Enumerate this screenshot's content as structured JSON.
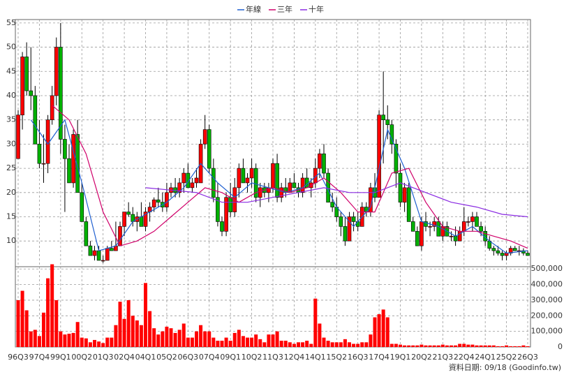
{
  "chart_data": {
    "type": "candlestick",
    "legend": "top",
    "grid": true,
    "note": "資料日期: 09/18 (Goodinfo.tw)",
    "up_color": "#ff0000",
    "down_color": "#00b000",
    "categories": [
      "96Q3",
      null,
      null,
      null,
      null,
      "97Q4",
      null,
      null,
      null,
      null,
      "99Q1",
      null,
      null,
      null,
      null,
      "00Q2",
      null,
      null,
      null,
      null,
      "01Q3",
      null,
      null,
      null,
      null,
      "02Q4",
      null,
      null,
      null,
      null,
      "04Q1",
      null,
      null,
      null,
      null,
      "05Q2",
      null,
      null,
      null,
      null,
      "06Q3",
      null,
      null,
      null,
      null,
      "07Q4",
      null,
      null,
      null,
      null,
      "09Q1",
      null,
      null,
      null,
      null,
      "10Q2",
      null,
      null,
      null,
      null,
      "11Q3",
      null,
      null,
      null,
      null,
      "12Q4",
      null,
      null,
      null,
      null,
      "14Q1",
      null,
      null,
      null,
      null,
      "15Q2",
      null,
      null,
      null,
      null,
      "16Q3",
      null,
      null,
      null,
      null,
      "17Q4",
      null,
      null,
      null,
      null,
      "19Q1",
      null,
      null,
      null,
      null,
      "20Q2",
      null,
      null,
      null,
      null,
      "21Q3",
      null,
      null,
      null,
      null,
      "22Q4",
      null,
      null,
      null,
      null,
      "24Q1",
      null,
      null,
      null,
      null,
      "25Q2",
      null,
      null,
      null,
      null,
      "26Q3"
    ],
    "ohlc": [
      [
        27,
        37,
        27,
        36
      ],
      [
        36,
        49,
        33,
        48
      ],
      [
        48,
        51,
        40,
        41
      ],
      [
        41,
        50,
        37,
        40
      ],
      [
        40,
        42,
        30,
        30
      ],
      [
        30,
        35,
        25,
        26
      ],
      [
        26,
        32,
        22,
        26
      ],
      [
        26,
        36,
        24,
        35
      ],
      [
        35,
        42,
        34,
        40
      ],
      [
        40,
        52,
        38,
        50
      ],
      [
        50,
        55,
        28,
        31
      ],
      [
        31,
        34,
        16,
        27
      ],
      [
        27,
        30,
        22,
        22
      ],
      [
        22,
        33,
        21,
        32
      ],
      [
        32,
        35,
        20,
        20
      ],
      [
        20,
        22,
        14,
        14
      ],
      [
        14,
        15,
        9,
        9
      ],
      [
        9,
        10,
        7,
        7
      ],
      [
        7,
        9,
        6,
        8
      ],
      [
        8,
        9,
        6,
        6
      ],
      [
        6,
        7,
        5.5,
        6
      ],
      [
        6,
        9,
        6,
        8.5
      ],
      [
        8.5,
        10,
        8,
        8
      ],
      [
        8,
        14,
        8,
        9
      ],
      [
        9,
        14,
        9,
        13
      ],
      [
        13,
        16,
        11,
        16
      ],
      [
        16,
        18,
        15,
        15.5
      ],
      [
        15.5,
        17,
        13,
        14
      ],
      [
        14,
        16,
        12,
        15
      ],
      [
        15,
        18,
        13,
        13
      ],
      [
        13,
        17,
        12,
        16
      ],
      [
        16,
        18,
        14,
        17
      ],
      [
        17,
        19,
        16,
        18.5
      ],
      [
        18.5,
        21,
        17,
        18
      ],
      [
        18,
        20,
        16,
        17
      ],
      [
        17,
        22,
        16,
        20
      ],
      [
        20,
        22,
        19,
        21
      ],
      [
        21,
        23,
        19,
        20
      ],
      [
        20,
        23,
        19,
        22
      ],
      [
        22,
        25,
        20,
        24
      ],
      [
        24,
        26,
        21,
        21
      ],
      [
        21,
        23,
        20,
        22
      ],
      [
        22,
        25,
        21,
        23
      ],
      [
        22,
        31,
        22,
        30
      ],
      [
        30,
        36,
        29,
        33
      ],
      [
        33,
        34,
        24,
        25
      ],
      [
        25,
        27,
        18,
        19
      ],
      [
        19,
        22,
        13,
        14
      ],
      [
        14,
        15,
        11,
        12
      ],
      [
        12,
        20,
        11,
        19
      ],
      [
        19,
        22,
        15,
        16
      ],
      [
        16,
        23,
        15,
        21
      ],
      [
        21,
        26,
        19,
        25
      ],
      [
        25,
        27,
        22,
        22
      ],
      [
        22,
        24,
        20,
        23
      ],
      [
        23,
        27,
        21,
        25
      ],
      [
        25,
        26,
        18,
        19
      ],
      [
        19,
        22,
        17,
        21
      ],
      [
        21,
        22,
        19,
        20
      ],
      [
        20,
        22,
        18,
        21
      ],
      [
        21,
        27,
        20,
        26
      ],
      [
        26,
        28,
        18,
        19
      ],
      [
        19,
        22,
        18,
        21
      ],
      [
        21,
        23,
        19,
        20
      ],
      [
        20,
        23,
        20,
        22
      ],
      [
        22,
        24,
        21,
        21
      ],
      [
        21,
        22,
        19,
        20
      ],
      [
        20,
        24,
        19,
        23
      ],
      [
        23,
        25,
        21,
        21
      ],
      [
        21,
        23,
        19,
        22
      ],
      [
        22,
        27,
        21,
        25
      ],
      [
        25,
        29,
        23,
        28
      ],
      [
        28,
        30,
        23,
        24
      ],
      [
        24,
        25,
        18,
        18
      ],
      [
        18,
        20,
        16,
        17
      ],
      [
        17,
        19,
        14,
        15
      ],
      [
        15,
        16,
        11,
        13
      ],
      [
        13,
        15,
        9,
        10
      ],
      [
        10,
        16,
        10,
        15
      ],
      [
        15,
        16,
        12,
        14
      ],
      [
        14,
        16,
        12,
        13
      ],
      [
        13,
        18,
        13,
        17
      ],
      [
        17,
        18,
        15,
        16
      ],
      [
        16,
        22,
        15,
        21
      ],
      [
        21,
        24,
        18,
        19
      ],
      [
        19,
        37,
        19,
        36
      ],
      [
        36,
        45,
        26,
        35
      ],
      [
        35,
        38,
        31,
        34
      ],
      [
        34,
        35,
        28,
        30
      ],
      [
        30,
        31,
        21,
        24
      ],
      [
        24,
        26,
        17,
        18
      ],
      [
        18,
        22,
        16,
        21
      ],
      [
        21,
        22,
        14,
        14
      ],
      [
        14,
        15,
        12,
        12
      ],
      [
        12,
        13,
        9,
        9
      ],
      [
        9,
        15,
        8,
        14
      ],
      [
        14,
        16,
        12,
        13
      ],
      [
        13,
        14,
        11,
        13
      ],
      [
        13,
        15,
        12,
        14
      ],
      [
        14,
        15,
        11,
        11
      ],
      [
        11,
        14,
        10,
        13
      ],
      [
        13,
        14,
        11,
        11
      ],
      [
        11,
        12,
        10,
        11
      ],
      [
        11,
        13,
        9,
        10
      ],
      [
        10,
        13,
        10,
        12
      ],
      [
        12,
        17,
        11,
        14
      ],
      [
        14,
        15,
        13,
        14
      ],
      [
        14,
        16,
        12,
        15
      ],
      [
        15,
        16,
        13,
        13
      ],
      [
        13,
        14,
        11,
        12
      ],
      [
        12,
        13,
        9,
        10
      ],
      [
        10,
        11,
        8,
        8.5
      ],
      [
        8.5,
        9,
        7,
        8
      ],
      [
        8,
        9,
        7,
        7.5
      ],
      [
        7.5,
        8,
        6,
        7
      ],
      [
        7,
        8,
        6,
        7.5
      ],
      [
        7.5,
        9,
        7,
        8.5
      ],
      [
        8.5,
        9,
        8,
        8
      ],
      [
        8,
        9,
        7,
        8
      ],
      [
        8,
        8.5,
        7,
        7.5
      ],
      [
        7.5,
        8,
        7,
        7
      ]
    ],
    "ylim": [
      4.7,
      55.7
    ],
    "yticks": [
      10,
      15,
      20,
      25,
      30,
      35,
      40,
      45,
      50,
      55
    ],
    "volume": {
      "color": "#ff0000",
      "values": [
        300000,
        360000,
        235000,
        100000,
        110000,
        70000,
        220000,
        440000,
        530000,
        300000,
        100000,
        80000,
        85000,
        90000,
        160000,
        60000,
        55000,
        30000,
        45000,
        35000,
        25000,
        60000,
        60000,
        140000,
        290000,
        180000,
        300000,
        200000,
        170000,
        140000,
        410000,
        230000,
        120000,
        80000,
        100000,
        130000,
        120000,
        90000,
        110000,
        150000,
        60000,
        60000,
        100000,
        140000,
        100000,
        100000,
        60000,
        40000,
        40000,
        60000,
        40000,
        90000,
        110000,
        70000,
        60000,
        60000,
        80000,
        50000,
        30000,
        80000,
        80000,
        100000,
        40000,
        40000,
        30000,
        20000,
        30000,
        30000,
        40000,
        20000,
        310000,
        150000,
        60000,
        40000,
        30000,
        30000,
        30000,
        50000,
        30000,
        20000,
        20000,
        30000,
        30000,
        80000,
        190000,
        210000,
        240000,
        190000,
        20000,
        20000,
        15000,
        10000,
        10000,
        10000,
        10000,
        15000,
        10000,
        10000,
        10000,
        10000,
        15000,
        10000,
        10000,
        10000,
        20000,
        20000,
        15000,
        15000,
        10000,
        10000,
        10000,
        10000,
        10000,
        5000,
        5000,
        10000,
        5000,
        5000,
        5000,
        10000,
        5000
      ],
      "ylim": [
        0,
        510000
      ],
      "yticks": [
        0,
        {
          "value": 100000,
          "label": "100,000"
        },
        {
          "value": 200000,
          "label": "200,000"
        },
        {
          "value": 300000,
          "label": "300,000"
        },
        {
          "value": 400000,
          "label": "400,000"
        },
        {
          "value": 500000,
          "label": "500,000"
        }
      ]
    },
    "series": [
      {
        "name": "年線",
        "color": "#1f5fd0",
        "x": [
          3,
          7,
          11,
          15,
          19,
          23,
          27,
          31,
          35,
          39,
          43,
          47,
          51,
          55,
          59,
          63,
          67,
          71,
          75,
          79,
          83,
          87,
          91,
          95,
          99,
          103,
          107,
          111,
          115,
          120
        ],
        "values": [
          35,
          30,
          35,
          22,
          8,
          9,
          14,
          16,
          18,
          21,
          26,
          22,
          19,
          22,
          21,
          20,
          21,
          24,
          17,
          13,
          17,
          33,
          25,
          14,
          13,
          11,
          13,
          10,
          7.5,
          8
        ]
      },
      {
        "name": "三年",
        "color": "#d0006a",
        "x": [
          8,
          12,
          16,
          20,
          24,
          28,
          32,
          36,
          40,
          44,
          48,
          52,
          56,
          60,
          64,
          68,
          72,
          76,
          80,
          84,
          88,
          92,
          96,
          100,
          104,
          108,
          112,
          116,
          120
        ],
        "values": [
          38,
          35,
          28,
          16,
          9,
          10,
          12,
          15,
          18,
          21,
          20,
          18,
          20,
          21,
          20,
          21,
          23,
          20,
          16,
          16,
          24,
          25,
          18,
          13,
          12,
          12,
          11,
          10,
          8.5
        ]
      },
      {
        "name": "十年",
        "color": "#8a2be2",
        "x": [
          30,
          36,
          42,
          48,
          54,
          60,
          66,
          72,
          78,
          84,
          90,
          96,
          102,
          108,
          114,
          120
        ],
        "values": [
          21,
          20.5,
          20,
          18,
          18,
          19,
          20,
          21,
          20,
          20,
          22,
          20,
          18,
          17,
          15.5,
          15
        ]
      }
    ]
  }
}
